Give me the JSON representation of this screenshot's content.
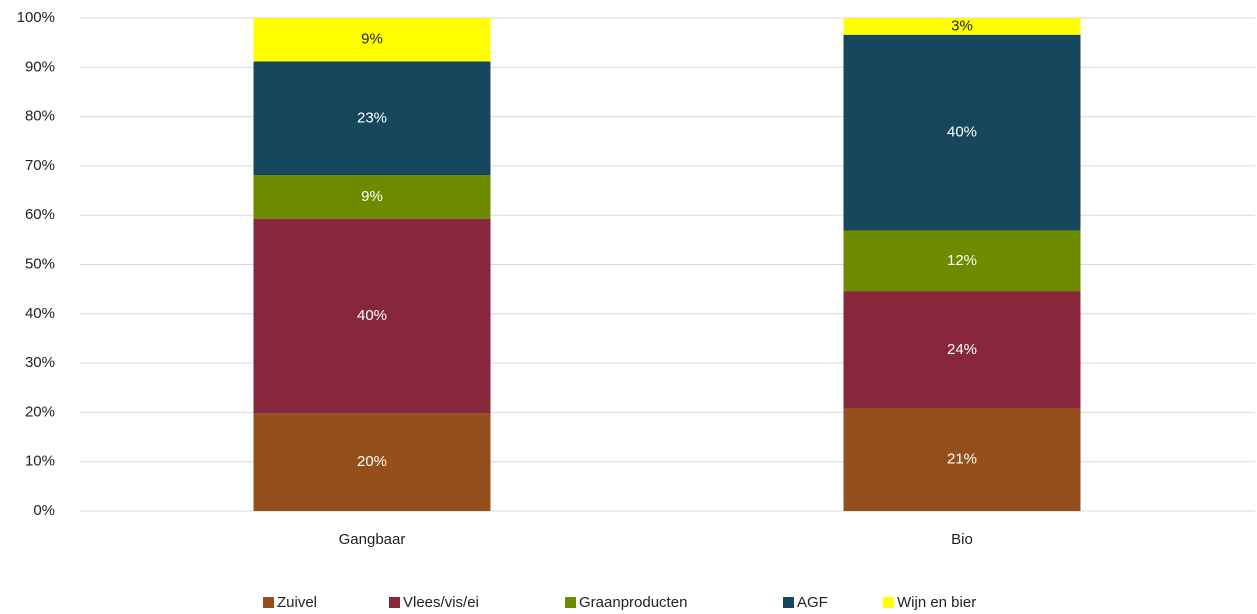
{
  "chart_data": {
    "type": "stacked_bar",
    "categories": [
      "Gangbaar",
      "Bio"
    ],
    "series": [
      {
        "name": "Zuivel",
        "color": "#954f1c",
        "values": [
          19.8,
          20.8
        ],
        "value_labels": [
          "20%",
          "21%"
        ]
      },
      {
        "name": "Vlees/vis/ei",
        "color": "#88263c",
        "values": [
          39.5,
          23.8
        ],
        "value_labels": [
          "40%",
          "24%"
        ]
      },
      {
        "name": "Graanproducten",
        "color": "#6e8b00",
        "values": [
          8.8,
          12.3
        ],
        "value_labels": [
          "9%",
          "12%"
        ]
      },
      {
        "name": "AGF",
        "color": "#17475d",
        "values": [
          23.1,
          39.7
        ],
        "value_labels": [
          "23%",
          "40%"
        ]
      },
      {
        "name": "Wijn en bier",
        "color": "#ffff00",
        "values": [
          8.8,
          3.4
        ],
        "value_labels": [
          "9%",
          "3%"
        ]
      }
    ],
    "ylim": [
      0,
      100
    ],
    "yticks": [
      {
        "value": 0,
        "label": "0%"
      },
      {
        "value": 10,
        "label": "10%"
      },
      {
        "value": 20,
        "label": "20%"
      },
      {
        "value": 30,
        "label": "30%"
      },
      {
        "value": 40,
        "label": "40%"
      },
      {
        "value": 50,
        "label": "50%"
      },
      {
        "value": 60,
        "label": "60%"
      },
      {
        "value": 70,
        "label": "70%"
      },
      {
        "value": 80,
        "label": "80%"
      },
      {
        "value": 90,
        "label": "90%"
      },
      {
        "value": 100,
        "label": "100%"
      }
    ],
    "grid": true,
    "legend": "bottom"
  }
}
